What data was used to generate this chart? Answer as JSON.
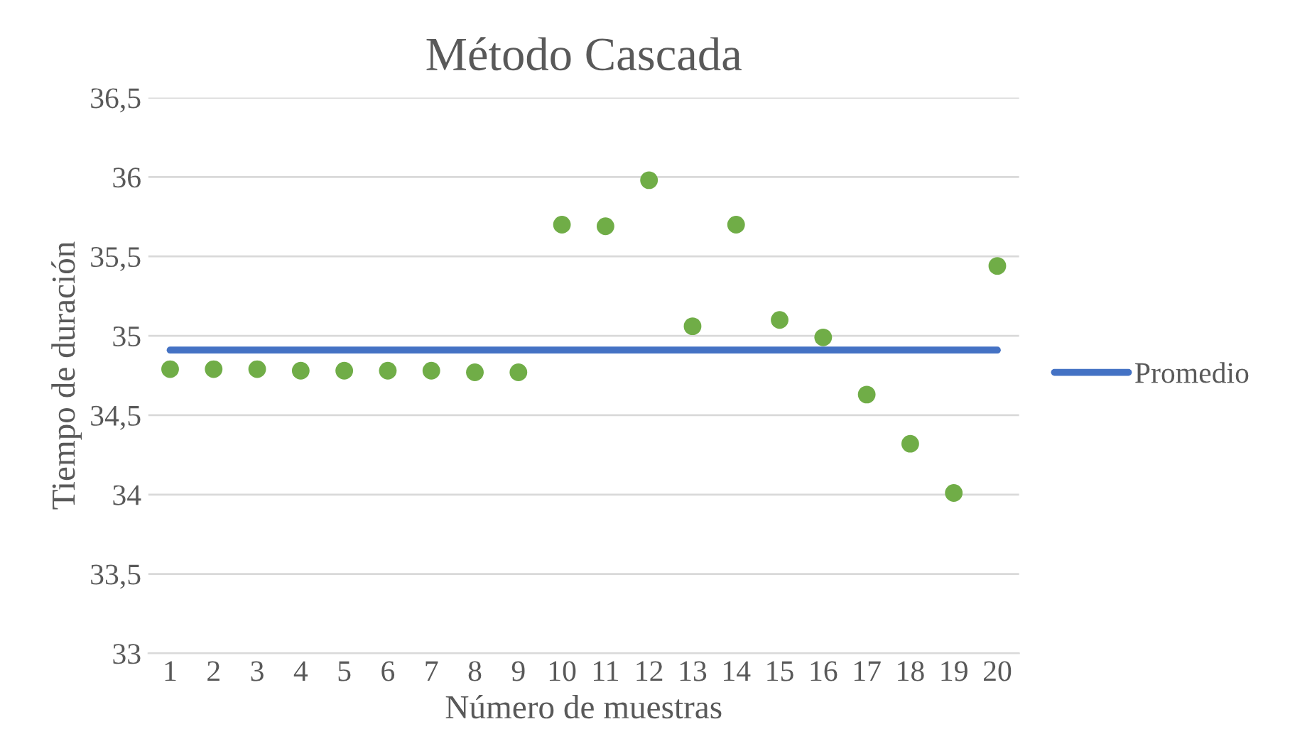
{
  "chart_data": {
    "type": "scatter",
    "title": "Método Cascada",
    "xlabel": "Número de muestras",
    "ylabel": "Tiempo de duración",
    "categories": [
      "1",
      "2",
      "3",
      "4",
      "5",
      "6",
      "7",
      "8",
      "9",
      "10",
      "11",
      "12",
      "13",
      "14",
      "15",
      "16",
      "17",
      "18",
      "19",
      "20"
    ],
    "series": [
      {
        "color": "#70ad47",
        "marker": "circle",
        "values": [
          34.79,
          34.79,
          34.79,
          34.78,
          34.78,
          34.78,
          34.78,
          34.77,
          34.77,
          35.7,
          35.69,
          35.98,
          35.06,
          35.7,
          35.1,
          34.99,
          34.63,
          34.32,
          34.01,
          35.44
        ]
      },
      {
        "type": "line",
        "name": "Promedio",
        "color": "#4472c4",
        "values": [
          34.91,
          34.91,
          34.91,
          34.91,
          34.91,
          34.91,
          34.91,
          34.91,
          34.91,
          34.91,
          34.91,
          34.91,
          34.91,
          34.91,
          34.91,
          34.91,
          34.91,
          34.91,
          34.91,
          34.91
        ]
      }
    ],
    "ylim": [
      33,
      36.5
    ],
    "yticks": [
      33,
      {
        "value": 33.5,
        "label": "33,5"
      },
      34,
      {
        "value": 34.5,
        "label": "34,5"
      },
      35,
      {
        "value": 35.5,
        "label": "35,5"
      },
      36,
      {
        "value": 36.5,
        "label": "36,5"
      }
    ],
    "grid": "y",
    "legend": "right"
  }
}
